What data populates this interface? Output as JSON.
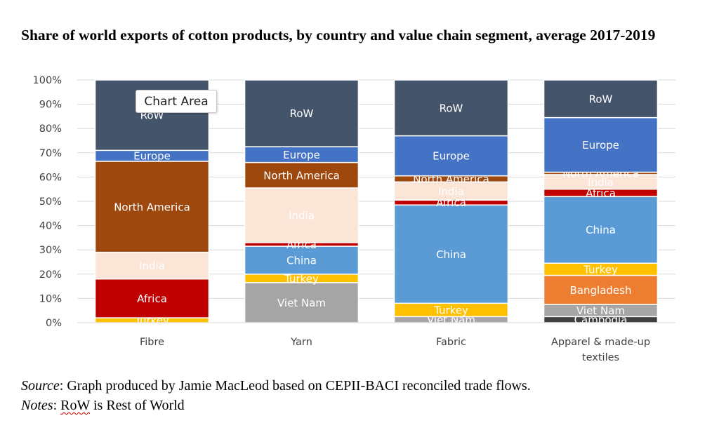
{
  "title": "Share of world exports of cotton products, by country and value chain segment, average 2017-2019",
  "tooltip": "Chart Area",
  "source_label": "Source",
  "source_text": ": Graph produced by Jamie MacLeod based on CEPII-BACI reconciled trade flows.",
  "notes_label": "Notes",
  "notes_rest": " is Rest of World",
  "notes_term": "RoW",
  "chart_data": {
    "type": "bar",
    "stacked": true,
    "title": "",
    "xlabel": "",
    "ylabel": "",
    "ylim": [
      0,
      100
    ],
    "y_ticks": [
      "0%",
      "10%",
      "20%",
      "30%",
      "40%",
      "50%",
      "60%",
      "70%",
      "80%",
      "90%",
      "100%"
    ],
    "grid": true,
    "legend": "none (segments labelled inside bars)",
    "categories": [
      "Fibre",
      "Yarn",
      "Fabric",
      "Apparel & made-up textiles"
    ],
    "series": [
      {
        "name": "Cambodia",
        "color": "#404040",
        "label_color": "#ffffff",
        "values": [
          0,
          0,
          0,
          2.5
        ]
      },
      {
        "name": "Viet Nam",
        "color": "#a5a5a5",
        "label_color": "#ffffff",
        "values": [
          0,
          16.5,
          2.5,
          5
        ]
      },
      {
        "name": "Bangladesh",
        "color": "#ed7d31",
        "label_color": "#ffffff",
        "values": [
          0,
          0,
          0,
          12
        ]
      },
      {
        "name": "Turkey",
        "color": "#ffc000",
        "label_color": "#ffffff",
        "values": [
          2,
          3.5,
          5.5,
          5
        ]
      },
      {
        "name": "China",
        "color": "#5b9bd5",
        "label_color": "#ffffff",
        "values": [
          0,
          11.5,
          40.5,
          27.5
        ]
      },
      {
        "name": "Africa",
        "color": "#c00000",
        "label_color": "#ffffff",
        "values": [
          16,
          1.5,
          2,
          3
        ]
      },
      {
        "name": "India",
        "color": "#fbe5d6",
        "label_color": "#ffffff",
        "values": [
          11,
          22.5,
          7.5,
          6
        ]
      },
      {
        "name": "North America",
        "color": "#9e480e",
        "label_color": "#ffffff",
        "values": [
          37.5,
          10.5,
          2.5,
          1
        ]
      },
      {
        "name": "Europe",
        "color": "#4472c4",
        "label_color": "#ffffff",
        "values": [
          4.5,
          6.5,
          16.5,
          22.5
        ]
      },
      {
        "name": "RoW",
        "color": "#44546a",
        "label_color": "#ffffff",
        "values": [
          29,
          27.5,
          23,
          15.5
        ]
      }
    ]
  }
}
